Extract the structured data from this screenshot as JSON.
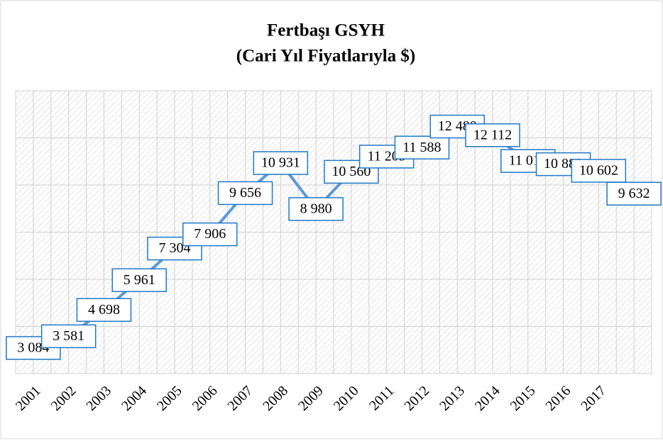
{
  "chart_data": {
    "type": "line",
    "title": "Fertbaşı GSYH",
    "subtitle": "(Cari Yıl Fiyatlarıyla  $)",
    "categories": [
      "2001",
      "2002",
      "2003",
      "2004",
      "2005",
      "2006",
      "2007",
      "2008",
      "2009",
      "2010",
      "2011",
      "2012",
      "2013",
      "2014",
      "2015",
      "2016",
      "2017",
      null
    ],
    "series": [
      {
        "name": "Fertbaşı GSYH",
        "color": "#5b9bd5",
        "values": [
          3084,
          3581,
          4698,
          5961,
          7304,
          7906,
          9656,
          10931,
          8980,
          10560,
          11205,
          11588,
          12480,
          12112,
          11019,
          10883,
          10602,
          9632
        ],
        "value_labels": [
          "3 084",
          "3 581",
          "4 698",
          "5 961",
          "7 304",
          "7 906",
          "9 656",
          "10 931",
          "8 980",
          "10 560",
          "11 205",
          "11 588",
          "12 480",
          "12 112",
          "11 019",
          "10 883",
          "10 602",
          "9 632"
        ]
      }
    ],
    "ylim": [
      2000,
      14000
    ]
  }
}
